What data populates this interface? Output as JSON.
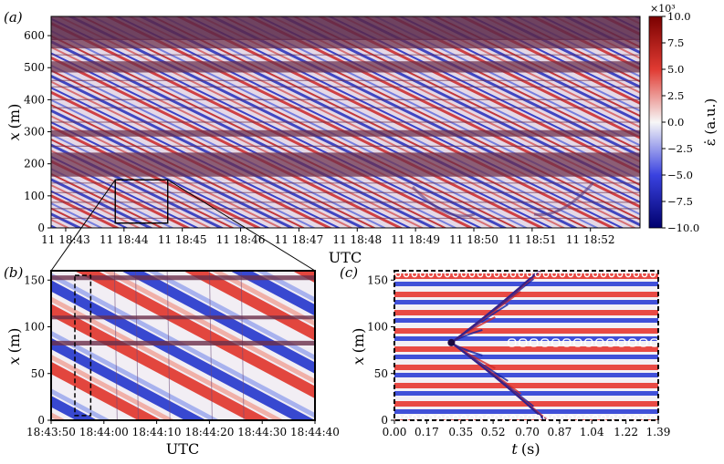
{
  "colors": {
    "neg": "#08087a",
    "mid": "#f7f7f7",
    "pos": "#8a0a0a",
    "band": "#6a2e4a",
    "frame": "#000000"
  },
  "chart_data": [
    {
      "id": "a",
      "panel_label": "(a)",
      "type": "heatmap",
      "xlabel": "UTC",
      "ylabel_var": "x",
      "ylabel_unit": "(m)",
      "ylim": [
        0,
        660
      ],
      "yticks": [
        0,
        100,
        200,
        300,
        400,
        500,
        600
      ],
      "xticks": [
        "11 18:43",
        "11 18:44",
        "11 18:45",
        "11 18:46",
        "11 18:47",
        "11 18:48",
        "11 18:49",
        "11 18:50",
        "11 18:51",
        "11 18:52"
      ],
      "x_minutes_range": [
        -0.25,
        9.85
      ],
      "zoom_box": {
        "x0_min": 0.85,
        "x1_min": 1.75,
        "y0": 15,
        "y1": 150
      },
      "fibre_bands_m": [
        [
          160,
          235
        ],
        [
          285,
          305
        ],
        [
          485,
          520
        ],
        [
          560,
          590
        ]
      ],
      "colorbar": {
        "label": "ε̇ (a.u.)",
        "multiplier": "×10³",
        "range": [
          -10.0,
          10.0
        ],
        "ticks": [
          "10.0",
          "7.5",
          "5.0",
          "2.5",
          "0.0",
          "−2.5",
          "−5.0",
          "−7.5",
          "−10.0"
        ]
      }
    },
    {
      "id": "b",
      "panel_label": "(b)",
      "type": "heatmap",
      "xlabel": "UTC",
      "ylabel_var": "x",
      "ylabel_unit": "(m)",
      "ylim": [
        0,
        160
      ],
      "yticks": [
        0,
        50,
        100,
        150
      ],
      "xticks": [
        "18:43:50",
        "18:44:00",
        "18:44:10",
        "18:44:20",
        "18:44:30",
        "18:44:40"
      ],
      "xlim_seconds": [
        50,
        100
      ],
      "dashed_box": {
        "t0_s": 54.5,
        "t1_s": 57.5,
        "y0": 5,
        "y1": 155
      },
      "fibre_bands_m": [
        [
          80,
          85
        ],
        [
          108,
          112
        ],
        [
          150,
          155
        ]
      ]
    },
    {
      "id": "c",
      "panel_label": "(c)",
      "type": "heatmap",
      "xlabel_var": "t",
      "xlabel_unit": "(s)",
      "ylabel_var": "x",
      "ylabel_unit": "(m)",
      "xlim": [
        0.0,
        1.39
      ],
      "ylim": [
        0,
        160
      ],
      "xticks": [
        "0.00",
        "0.17",
        "0.35",
        "0.52",
        "0.70",
        "0.87",
        "1.04",
        "1.22",
        "1.39"
      ],
      "yticks": [
        0,
        50,
        100,
        150
      ],
      "source": {
        "t": 0.3,
        "x": 83
      }
    }
  ]
}
